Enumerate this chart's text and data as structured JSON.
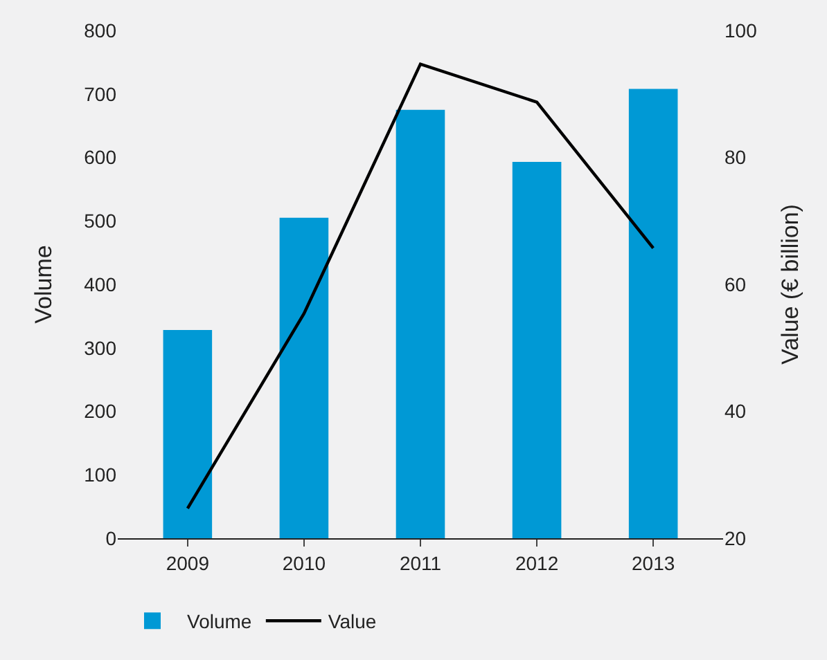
{
  "chart_data": {
    "type": "bar",
    "categories": [
      "2009",
      "2010",
      "2011",
      "2012",
      "2013"
    ],
    "series": [
      {
        "name": "Volume",
        "color": "#0099d5",
        "values": [
          328,
          505,
          675,
          593,
          708
        ]
      },
      {
        "name": "Value",
        "type": "line",
        "axis": "y2",
        "color": "#000000",
        "values": [
          24.7,
          55.4,
          94.7,
          88.7,
          65.7
        ]
      }
    ],
    "ylabel": "Volume",
    "y2label": "Value (€ billion)",
    "ylim": [
      0,
      800
    ],
    "yticks": [
      0,
      100,
      200,
      300,
      400,
      500,
      600,
      700,
      800
    ],
    "y2lim": [
      20,
      100
    ],
    "y2ticks": [
      20,
      40,
      60,
      80,
      100
    ],
    "grid": false,
    "legend": "bottom left",
    "marker": "none",
    "line_style": "solid"
  }
}
